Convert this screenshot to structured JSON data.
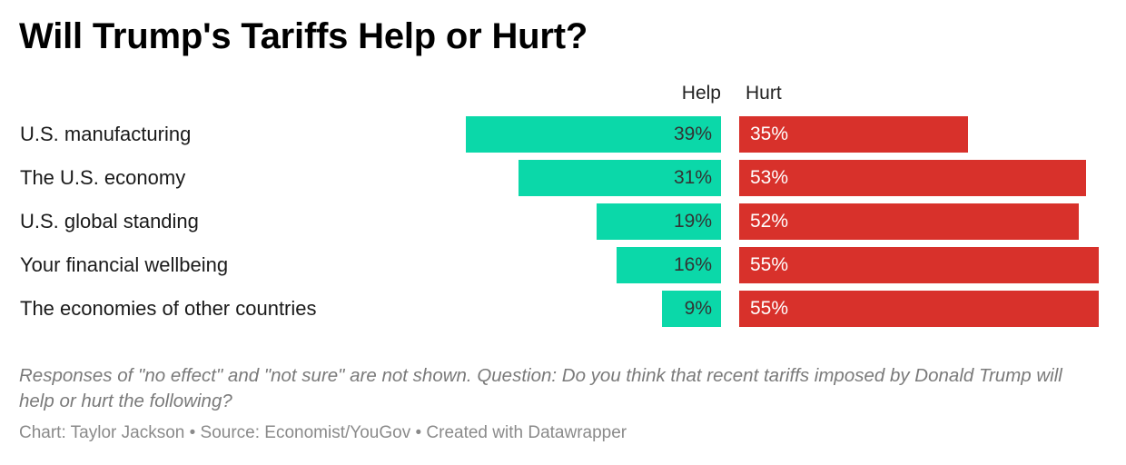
{
  "title": "Will Trump's Tariffs Help or Hurt?",
  "chart_data": {
    "type": "bar",
    "orientation": "diverging-horizontal",
    "series": [
      {
        "name": "Help",
        "color": "#0bd8a9",
        "values": [
          39,
          31,
          19,
          16,
          9
        ]
      },
      {
        "name": "Hurt",
        "color": "#d8312b",
        "values": [
          35,
          53,
          52,
          55,
          55
        ]
      }
    ],
    "categories": [
      "U.S. manufacturing",
      "The U.S. economy",
      "U.S. global standing",
      "Your financial wellbeing",
      "The economies of other countries"
    ],
    "value_labels": {
      "help": [
        "39%",
        "31%",
        "19%",
        "16%",
        "9%"
      ],
      "hurt": [
        "35%",
        "53%",
        "52%",
        "55%",
        "55%"
      ]
    },
    "unit": "%",
    "xlim": [
      0,
      56
    ]
  },
  "notes": "Responses of \"no effect\" and \"not sure\" are not shown. Question: Do you think that recent tariffs imposed by Donald Trump will help or hurt the following?",
  "byline": "Chart: Taylor Jackson • Source: Economist/YouGov • Created with Datawrapper"
}
